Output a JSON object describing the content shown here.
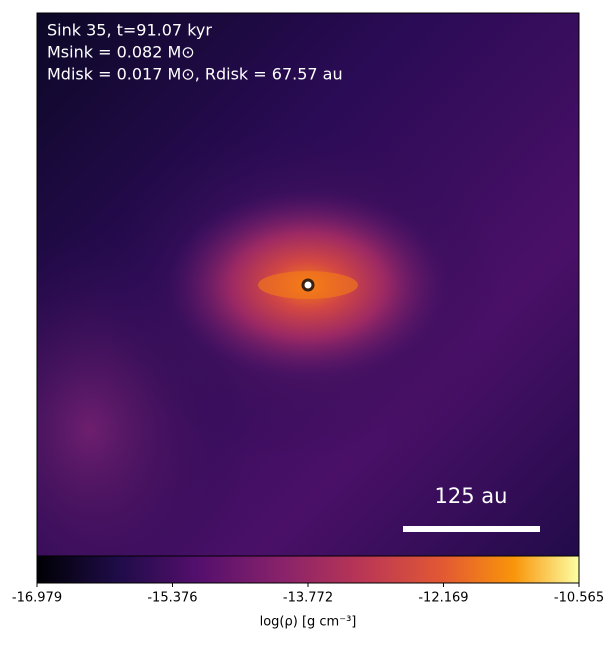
{
  "chart_data": {
    "type": "image",
    "annotations": [
      "Sink 35, t=91.07 kyr",
      "Msink = 0.082 M⊙",
      "Mdisk = 0.017 M⊙, Rdisk = 67.57 au"
    ],
    "scalebar_label": "125 au",
    "clim": [
      -16.979,
      -10.565
    ],
    "cticks": [
      -16.979,
      -15.376,
      -13.772,
      -12.169,
      -10.565
    ],
    "colorbar_label": "log(ρ) [g cm⁻³]"
  }
}
